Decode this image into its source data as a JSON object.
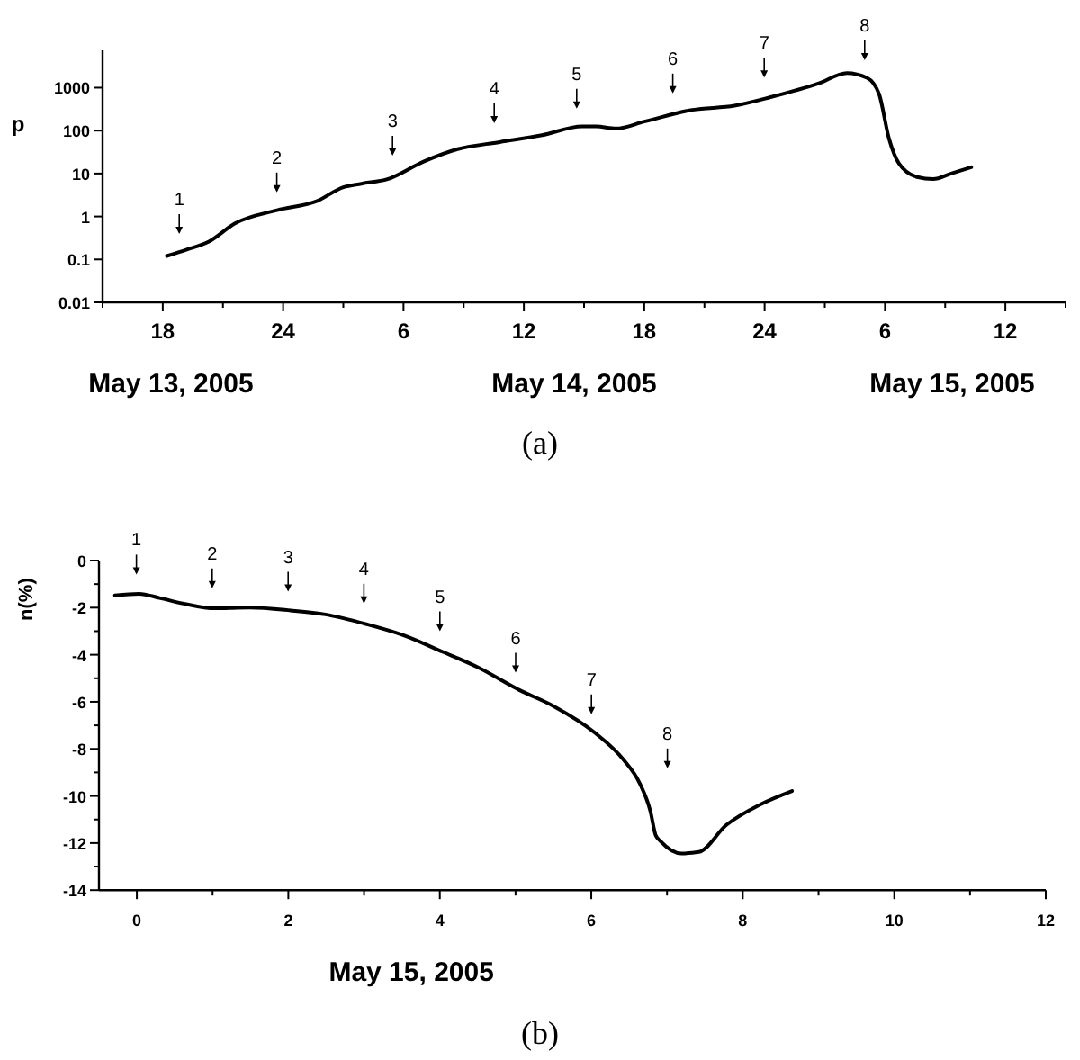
{
  "chart_data": [
    {
      "type": "line",
      "ylabel": "p",
      "log": "y",
      "xlim": [
        "2005-05-13T15:00",
        "2005-05-15T15:00"
      ],
      "ylim": [
        0.01,
        7400
      ],
      "xticks": [
        {
          "value": "2005-05-13T15:00",
          "label": null
        },
        {
          "value": "2005-05-13T18:00",
          "label": "18"
        },
        {
          "value": "2005-05-13T21:00",
          "label": null
        },
        {
          "value": "2005-05-14T00:00",
          "label": "24"
        },
        {
          "value": "2005-05-14T03:00",
          "label": null
        },
        {
          "value": "2005-05-14T06:00",
          "label": "6"
        },
        {
          "value": "2005-05-14T09:00",
          "label": null
        },
        {
          "value": "2005-05-14T12:00",
          "label": "12"
        },
        {
          "value": "2005-05-14T15:00",
          "label": null
        },
        {
          "value": "2005-05-14T18:00",
          "label": "18"
        },
        {
          "value": "2005-05-14T21:00",
          "label": null
        },
        {
          "value": "2005-05-15T00:00",
          "label": "24"
        },
        {
          "value": "2005-05-15T03:00",
          "label": null
        },
        {
          "value": "2005-05-15T06:00",
          "label": "6"
        },
        {
          "value": "2005-05-15T09:00",
          "label": null
        },
        {
          "value": "2005-05-15T12:00",
          "label": "12"
        },
        {
          "value": "2005-05-15T15:00",
          "label": null
        }
      ],
      "yticks": [
        0.01,
        0.1,
        1,
        10,
        100,
        1000
      ],
      "series": [
        {
          "color": "#000000",
          "x": [
            "2005-05-13T18:12",
            "2005-05-13T19:12",
            "2005-05-13T20:18",
            "2005-05-13T21:36",
            "2005-05-13T23:42",
            "2005-05-14T01:42",
            "2005-05-14T03:00",
            "2005-05-14T03:54",
            "2005-05-14T05:12",
            "2005-05-14T07:00",
            "2005-05-14T08:42",
            "2005-05-14T10:48",
            "2005-05-14T12:54",
            "2005-05-14T14:54",
            "2005-05-14T15:36",
            "2005-05-14T16:36",
            "2005-05-14T18:00",
            "2005-05-14T20:24",
            "2005-05-14T22:30",
            "2005-05-15T00:18",
            "2005-05-15T02:42",
            "2005-05-15T04:06",
            "2005-05-15T05:06",
            "2005-05-15T05:42",
            "2005-05-15T06:12",
            "2005-05-15T06:42",
            "2005-05-15T07:36",
            "2005-05-15T08:24",
            "2005-05-15T09:18",
            "2005-05-15T10:18"
          ],
          "values": [
            0.12,
            0.17,
            0.26,
            0.69,
            1.4,
            2.3,
            4.8,
            5.8,
            7.4,
            19,
            37,
            54,
            78,
            125,
            125,
            112,
            162,
            304,
            380,
            600,
            1260,
            2200,
            1700,
            720,
            65,
            17,
            8.3,
            7.4,
            10,
            14
          ]
        }
      ],
      "annotations": [
        "1",
        "2",
        "3",
        "4",
        "5",
        "6",
        "7",
        "8",
        "May 13, 2005",
        "May 14, 2005",
        "May 15, 2005",
        "(a)"
      ]
    },
    {
      "type": "line",
      "xlabel": "May 15, 2005",
      "ylabel": "n(%)",
      "xlim": [
        -0.5,
        12
      ],
      "ylim": [
        -14,
        0
      ],
      "xticks": [
        0,
        {
          "value": 1,
          "label": null
        },
        2,
        {
          "value": 3,
          "label": null
        },
        4,
        {
          "value": 5,
          "label": null
        },
        6,
        {
          "value": 7,
          "label": null
        },
        8,
        {
          "value": 9,
          "label": null
        },
        10,
        {
          "value": 11,
          "label": null
        },
        12
      ],
      "yticks": [
        {
          "value": -14,
          "label": "-14"
        },
        {
          "value": -13,
          "label": null
        },
        {
          "value": -12,
          "label": "-12"
        },
        {
          "value": -11,
          "label": null
        },
        {
          "value": -10,
          "label": "-10"
        },
        {
          "value": -9,
          "label": null
        },
        {
          "value": -8,
          "label": "-8"
        },
        {
          "value": -7,
          "label": null
        },
        {
          "value": -6,
          "label": "-6"
        },
        {
          "value": -5,
          "label": null
        },
        {
          "value": -4,
          "label": "-4"
        },
        {
          "value": -3,
          "label": null
        },
        {
          "value": -2,
          "label": "-2"
        },
        {
          "value": -1,
          "label": null
        },
        {
          "value": 0,
          "label": "0"
        }
      ],
      "series": [
        {
          "color": "#000000",
          "x": [
            -0.29,
            0.03,
            0.3,
            0.62,
            1.03,
            1.49,
            2.03,
            2.49,
            3.04,
            3.5,
            4.04,
            4.5,
            5.05,
            5.5,
            6.05,
            6.42,
            6.64,
            6.78,
            6.85,
            6.92,
            7.19,
            7.42,
            7.78,
            8.24,
            8.65
          ],
          "values": [
            -1.48,
            -1.41,
            -1.59,
            -1.83,
            -2.03,
            -2.0,
            -2.12,
            -2.29,
            -2.71,
            -3.15,
            -3.88,
            -4.53,
            -5.5,
            -6.18,
            -7.32,
            -8.44,
            -9.47,
            -10.65,
            -11.67,
            -11.94,
            -12.44,
            -12.38,
            -11.24,
            -10.35,
            -9.79
          ]
        }
      ],
      "annotations": [
        "1",
        "2",
        "3",
        "4",
        "5",
        "6",
        "7",
        "8",
        "(b)"
      ]
    }
  ]
}
